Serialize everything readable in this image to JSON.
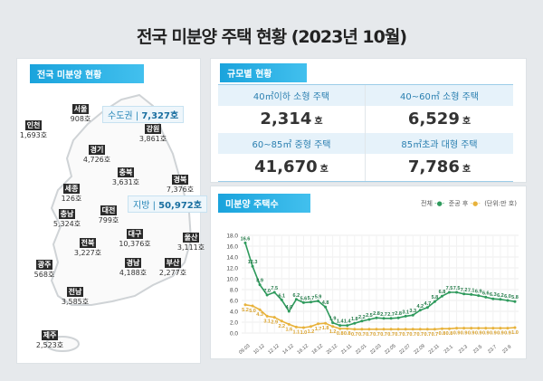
{
  "title": "전국 미분양 주택 현황 (2023년 10월)",
  "map": {
    "label": "전국 미분양 현황",
    "capital": {
      "name": "수도권",
      "value": "7,327호"
    },
    "local": {
      "name": "지방",
      "value": "50,972호"
    },
    "regions": [
      {
        "name": "서울",
        "value": "908호"
      },
      {
        "name": "인천",
        "value": "1,693호"
      },
      {
        "name": "강원",
        "value": "3,861호"
      },
      {
        "name": "경기",
        "value": "4,726호"
      },
      {
        "name": "충북",
        "value": "3,631호"
      },
      {
        "name": "경북",
        "value": "7,376호"
      },
      {
        "name": "세종",
        "value": "126호"
      },
      {
        "name": "대전",
        "value": "799호"
      },
      {
        "name": "충남",
        "value": "5,324호"
      },
      {
        "name": "대구",
        "value": "10,376호"
      },
      {
        "name": "울산",
        "value": "3,111호"
      },
      {
        "name": "전북",
        "value": "3,227호"
      },
      {
        "name": "광주",
        "value": "568호"
      },
      {
        "name": "경남",
        "value": "4,188호"
      },
      {
        "name": "부산",
        "value": "2,277호"
      },
      {
        "name": "전남",
        "value": "3,585호"
      },
      {
        "name": "제주",
        "value": "2,523호"
      }
    ]
  },
  "size": {
    "label": "규모별 현황",
    "cells": [
      {
        "header": "40㎡이하 소형 주택",
        "value": "2,314",
        "unit": "호"
      },
      {
        "header": "40~60㎡ 소형 주택",
        "value": "6,529",
        "unit": "호"
      },
      {
        "header": "60~85㎡ 중형 주택",
        "value": "41,670",
        "unit": "호"
      },
      {
        "header": "85㎡초과 대형 주택",
        "value": "7,786",
        "unit": "호"
      }
    ]
  },
  "chart_data": {
    "type": "line",
    "title": "미분양 주택수",
    "unit_note": "(단위:만 호)",
    "ylim": [
      0,
      18
    ],
    "yticks": [
      "0.0",
      "2.0",
      "4.0",
      "6.0",
      "8.0",
      "10.0",
      "12.0",
      "14.0",
      "16.0",
      "18.0"
    ],
    "xtick_labels": [
      "09.03",
      "10.12",
      "12.12",
      "14.12",
      "16.12",
      "18.12",
      "20.12",
      "21.11",
      "22.01",
      "22.03",
      "22.05",
      "22.07",
      "22.09",
      "22.11",
      "23.1",
      "23.3",
      "23.5",
      "23.7",
      "23.9"
    ],
    "series": [
      {
        "name": "전체",
        "color": "#2e9a5c",
        "values": [
          16.6,
          12.3,
          8.9,
          7.0,
          7.5,
          6.1,
          4.0,
          6.2,
          5.6,
          5.7,
          5.9,
          4.8,
          1.9,
          1.4,
          1.4,
          1.8,
          2.2,
          2.5,
          2.8,
          2.7,
          2.7,
          2.8,
          3.1,
          3.3,
          4.2,
          4.7,
          5.8,
          6.8,
          7.5,
          7.5,
          7.2,
          7.1,
          6.9,
          6.6,
          6.3,
          6.2,
          6.0,
          5.8
        ]
      },
      {
        "name": "준공 후",
        "color": "#e8b23a",
        "values": [
          5.2,
          5.0,
          4.3,
          3.1,
          2.9,
          2.2,
          1.6,
          1.1,
          1.0,
          1.2,
          1.7,
          1.8,
          1.2,
          0.8,
          0.8,
          0.7,
          0.7,
          0.7,
          0.7,
          0.7,
          0.7,
          0.7,
          0.7,
          0.7,
          0.7,
          0.7,
          0.7,
          0.8,
          0.8,
          0.9,
          0.9,
          0.9,
          0.9,
          0.9,
          0.9,
          0.9,
          0.9,
          1.0
        ]
      }
    ]
  }
}
